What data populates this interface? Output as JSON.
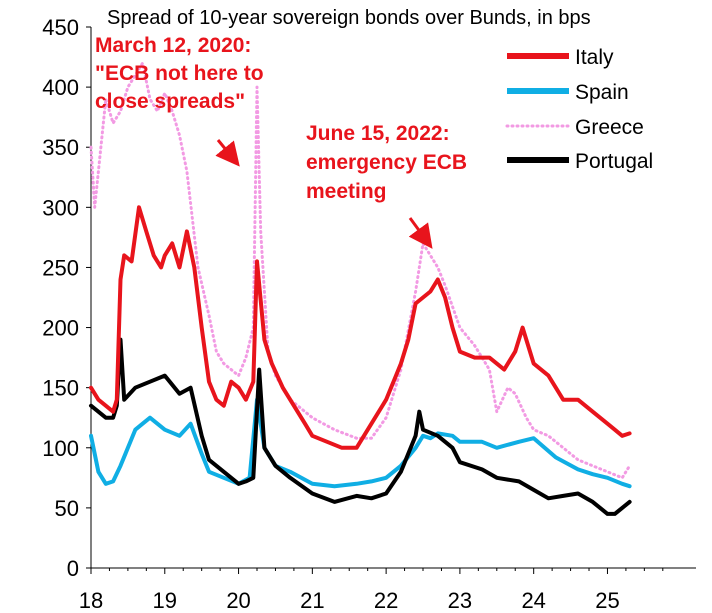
{
  "chart_data": {
    "type": "line",
    "title": "Spread of 10-year sovereign bonds over Bunds, in bps",
    "xlabel": "",
    "ylabel": "",
    "xlim": [
      2018.0,
      2026.2
    ],
    "ylim": [
      0,
      450
    ],
    "y_ticks": [
      0,
      50,
      100,
      150,
      200,
      250,
      300,
      350,
      400,
      450
    ],
    "x_ticks": [
      {
        "value": 2018,
        "label": "18"
      },
      {
        "value": 2019,
        "label": "19"
      },
      {
        "value": 2020,
        "label": "20"
      },
      {
        "value": 2021,
        "label": "21"
      },
      {
        "value": 2022,
        "label": "22"
      },
      {
        "value": 2023,
        "label": "23"
      },
      {
        "value": 2024,
        "label": "24"
      },
      {
        "value": 2025,
        "label": "25"
      }
    ],
    "grid": false,
    "legend_position": "top-right",
    "series": [
      {
        "name": "Italy",
        "color": "#e8141c",
        "style": "solid",
        "x": [
          2018.0,
          2018.1,
          2018.2,
          2018.3,
          2018.35,
          2018.4,
          2018.45,
          2018.55,
          2018.65,
          2018.75,
          2018.85,
          2018.95,
          2019.0,
          2019.1,
          2019.2,
          2019.3,
          2019.4,
          2019.5,
          2019.6,
          2019.7,
          2019.8,
          2019.9,
          2020.0,
          2020.1,
          2020.2,
          2020.25,
          2020.35,
          2020.45,
          2020.6,
          2020.75,
          2020.9,
          2021.0,
          2021.2,
          2021.4,
          2021.6,
          2021.8,
          2022.0,
          2022.1,
          2022.2,
          2022.3,
          2022.4,
          2022.5,
          2022.6,
          2022.7,
          2022.8,
          2022.9,
          2023.0,
          2023.2,
          2023.4,
          2023.6,
          2023.75,
          2023.85,
          2024.0,
          2024.2,
          2024.4,
          2024.6,
          2024.8,
          2025.0,
          2025.1,
          2025.2,
          2025.3
        ],
        "values": [
          150,
          140,
          135,
          130,
          140,
          240,
          260,
          255,
          300,
          280,
          260,
          250,
          260,
          270,
          250,
          280,
          250,
          200,
          155,
          140,
          135,
          155,
          150,
          140,
          155,
          255,
          190,
          170,
          150,
          135,
          120,
          110,
          105,
          100,
          100,
          120,
          140,
          155,
          170,
          190,
          220,
          225,
          230,
          240,
          225,
          200,
          180,
          175,
          175,
          165,
          180,
          200,
          170,
          160,
          140,
          140,
          130,
          120,
          115,
          110,
          112
        ]
      },
      {
        "name": "Spain",
        "color": "#10aee4",
        "style": "solid",
        "x": [
          2018.0,
          2018.1,
          2018.2,
          2018.3,
          2018.4,
          2018.5,
          2018.6,
          2018.7,
          2018.8,
          2018.9,
          2019.0,
          2019.2,
          2019.35,
          2019.5,
          2019.6,
          2019.8,
          2020.0,
          2020.15,
          2020.25,
          2020.35,
          2020.5,
          2020.7,
          2021.0,
          2021.3,
          2021.6,
          2021.8,
          2022.0,
          2022.2,
          2022.4,
          2022.5,
          2022.6,
          2022.7,
          2022.9,
          2023.0,
          2023.3,
          2023.5,
          2023.8,
          2024.0,
          2024.3,
          2024.6,
          2024.8,
          2025.0,
          2025.2,
          2025.3
        ],
        "values": [
          110,
          80,
          70,
          72,
          85,
          100,
          115,
          120,
          125,
          120,
          115,
          110,
          120,
          95,
          80,
          75,
          70,
          75,
          140,
          100,
          85,
          80,
          70,
          68,
          70,
          72,
          75,
          85,
          100,
          110,
          108,
          112,
          110,
          105,
          105,
          100,
          105,
          108,
          92,
          82,
          78,
          75,
          70,
          68
        ]
      },
      {
        "name": "Greece",
        "color": "#f29ae3",
        "style": "dotted",
        "x": [
          2018.0,
          2018.05,
          2018.1,
          2018.2,
          2018.3,
          2018.4,
          2018.5,
          2018.6,
          2018.7,
          2018.8,
          2018.9,
          2019.0,
          2019.1,
          2019.2,
          2019.3,
          2019.45,
          2019.6,
          2019.7,
          2019.8,
          2019.9,
          2020.0,
          2020.1,
          2020.2,
          2020.25,
          2020.3,
          2020.4,
          2020.5,
          2020.7,
          2020.9,
          2021.0,
          2021.3,
          2021.6,
          2021.8,
          2022.0,
          2022.2,
          2022.4,
          2022.5,
          2022.6,
          2022.7,
          2022.8,
          2023.0,
          2023.2,
          2023.4,
          2023.5,
          2023.65,
          2023.75,
          2023.9,
          2024.0,
          2024.2,
          2024.4,
          2024.6,
          2024.8,
          2025.0,
          2025.2,
          2025.3
        ],
        "values": [
          350,
          300,
          330,
          390,
          370,
          380,
          400,
          410,
          420,
          390,
          380,
          395,
          380,
          360,
          330,
          250,
          210,
          180,
          170,
          165,
          160,
          175,
          200,
          400,
          280,
          180,
          160,
          140,
          130,
          125,
          115,
          108,
          108,
          125,
          165,
          230,
          270,
          260,
          250,
          235,
          200,
          185,
          165,
          130,
          150,
          145,
          125,
          115,
          110,
          100,
          90,
          85,
          80,
          75,
          85
        ]
      },
      {
        "name": "Portugal",
        "color": "#000000",
        "style": "solid",
        "x": [
          2018.0,
          2018.1,
          2018.2,
          2018.3,
          2018.35,
          2018.4,
          2018.45,
          2018.6,
          2018.8,
          2019.0,
          2019.2,
          2019.35,
          2019.5,
          2019.6,
          2019.8,
          2020.0,
          2020.1,
          2020.2,
          2020.28,
          2020.35,
          2020.5,
          2020.7,
          2021.0,
          2021.3,
          2021.6,
          2021.8,
          2022.0,
          2022.2,
          2022.4,
          2022.45,
          2022.5,
          2022.7,
          2022.9,
          2023.0,
          2023.3,
          2023.5,
          2023.8,
          2024.0,
          2024.2,
          2024.4,
          2024.6,
          2024.8,
          2025.0,
          2025.1,
          2025.2,
          2025.3
        ],
        "values": [
          135,
          130,
          125,
          125,
          135,
          190,
          140,
          150,
          155,
          160,
          145,
          150,
          110,
          90,
          80,
          70,
          72,
          75,
          165,
          100,
          85,
          75,
          62,
          55,
          60,
          58,
          62,
          80,
          110,
          130,
          115,
          110,
          100,
          88,
          82,
          75,
          72,
          65,
          58,
          60,
          62,
          55,
          45,
          45,
          50,
          55
        ]
      }
    ],
    "annotations": [
      {
        "lines": [
          "March 12, 2020:",
          "\"ECB not here to",
          "close spreads\""
        ],
        "points_to": {
          "x": 2020.0,
          "y": 335
        }
      },
      {
        "lines": [
          "June 15, 2022:",
          "emergency ECB",
          "meeting"
        ],
        "points_to": {
          "x": 2022.5,
          "y": 265
        }
      }
    ]
  }
}
